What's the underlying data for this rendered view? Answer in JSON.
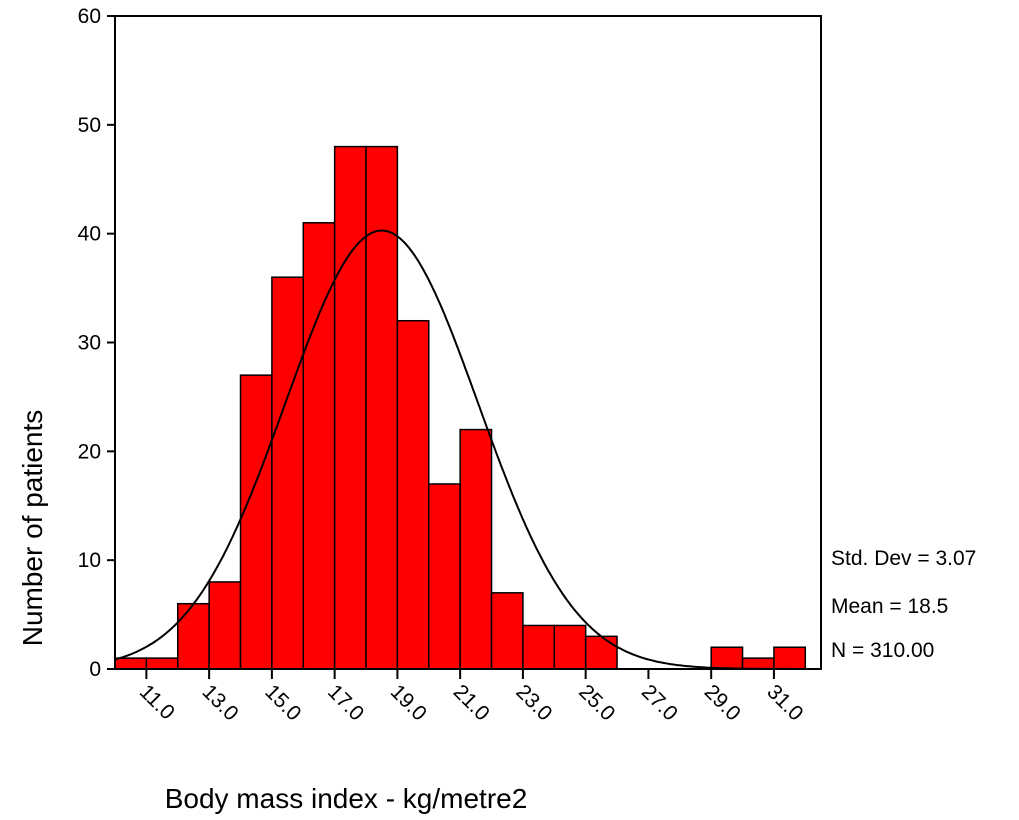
{
  "chart_data": {
    "type": "bar",
    "subtype": "histogram",
    "xlabel": "Body mass index - kg/metre2",
    "ylabel": "Number of patients",
    "ylim": [
      0,
      60
    ],
    "yticks": [
      "0",
      "10",
      "20",
      "30",
      "40",
      "50",
      "60"
    ],
    "xlim": [
      10.0,
      32.5
    ],
    "xticks": [
      "11.0",
      "13.0",
      "15.0",
      "17.0",
      "19.0",
      "21.0",
      "23.0",
      "25.0",
      "27.0",
      "29.0",
      "31.0"
    ],
    "bin_width": 1.0,
    "bins": [
      {
        "center": 10.5,
        "count": 1
      },
      {
        "center": 11.5,
        "count": 1
      },
      {
        "center": 12.5,
        "count": 6
      },
      {
        "center": 13.5,
        "count": 8
      },
      {
        "center": 14.5,
        "count": 27
      },
      {
        "center": 15.5,
        "count": 36
      },
      {
        "center": 16.5,
        "count": 41
      },
      {
        "center": 17.5,
        "count": 48
      },
      {
        "center": 18.5,
        "count": 48
      },
      {
        "center": 19.5,
        "count": 32
      },
      {
        "center": 20.5,
        "count": 17
      },
      {
        "center": 21.5,
        "count": 22
      },
      {
        "center": 22.5,
        "count": 7
      },
      {
        "center": 23.5,
        "count": 4
      },
      {
        "center": 24.5,
        "count": 4
      },
      {
        "center": 25.5,
        "count": 3
      },
      {
        "center": 26.5,
        "count": 0
      },
      {
        "center": 27.5,
        "count": 0
      },
      {
        "center": 28.5,
        "count": 0
      },
      {
        "center": 29.5,
        "count": 2
      },
      {
        "center": 30.5,
        "count": 1
      },
      {
        "center": 31.5,
        "count": 2
      }
    ],
    "normal_curve": {
      "mean": 18.5,
      "std": 3.07,
      "n": 310
    },
    "stats": [
      "Std. Dev = 3.07",
      "Mean = 18.5",
      "N = 310.00"
    ],
    "bar_color": "#ff0000",
    "curve_color": "#000000",
    "grid": false
  }
}
